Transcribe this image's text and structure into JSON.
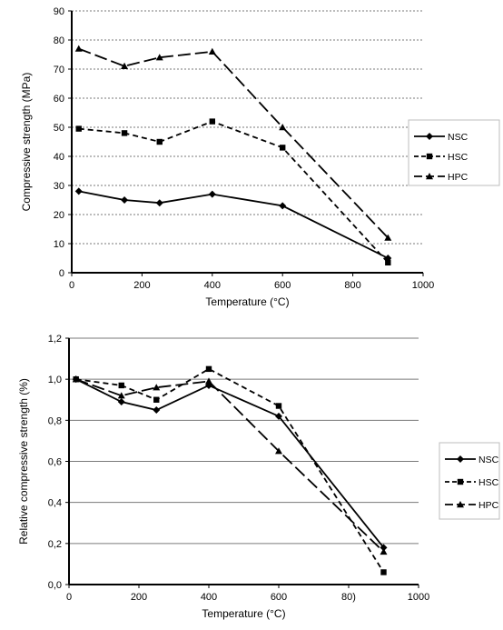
{
  "chart_data": [
    {
      "type": "line",
      "title": "",
      "xlabel": "Temperature (°C)",
      "ylabel": "Compressive strength  (MPa)",
      "xlim": [
        0,
        1000
      ],
      "ylim": [
        0,
        90
      ],
      "x_ticks": [
        "0",
        "200",
        "400",
        "600",
        "800",
        "1000"
      ],
      "y_ticks": [
        "0",
        "10",
        "20",
        "30",
        "40",
        "50",
        "60",
        "70",
        "80",
        "90"
      ],
      "grid": true,
      "legend_position": "right",
      "series": [
        {
          "name": "NSC",
          "marker": "diamond",
          "dash": "solid",
          "x": [
            20,
            150,
            250,
            400,
            600,
            900
          ],
          "y": [
            28,
            25,
            24,
            27,
            23,
            5
          ]
        },
        {
          "name": "HSC",
          "marker": "square",
          "dash": "dashed",
          "x": [
            20,
            150,
            250,
            400,
            600,
            900
          ],
          "y": [
            49.5,
            48,
            45,
            52,
            43,
            3.5
          ]
        },
        {
          "name": "HPC",
          "marker": "triangle",
          "dash": "longdash",
          "x": [
            20,
            150,
            250,
            400,
            600,
            900
          ],
          "y": [
            77,
            71,
            74,
            76,
            50,
            12
          ]
        }
      ]
    },
    {
      "type": "line",
      "title": "",
      "xlabel": "Temperature (°C)",
      "ylabel": "Relative compressive strength  (%)",
      "xlim": [
        0,
        1000
      ],
      "ylim": [
        0,
        1.2
      ],
      "x_ticks": [
        "0",
        "200",
        "400",
        "600",
        "80)",
        "1000"
      ],
      "y_ticks": [
        "0,0",
        "0,2",
        "0,4",
        "0,6",
        "0,8",
        "1,0",
        "1,2"
      ],
      "grid": true,
      "legend_position": "right",
      "series": [
        {
          "name": "NSC",
          "marker": "diamond",
          "dash": "solid",
          "x": [
            20,
            150,
            250,
            400,
            600,
            900
          ],
          "y": [
            1.0,
            0.89,
            0.85,
            0.97,
            0.82,
            0.18
          ]
        },
        {
          "name": "HSC",
          "marker": "square",
          "dash": "dashed",
          "x": [
            20,
            150,
            250,
            400,
            600,
            900
          ],
          "y": [
            1.0,
            0.97,
            0.9,
            1.05,
            0.87,
            0.06
          ]
        },
        {
          "name": "HPC",
          "marker": "triangle",
          "dash": "longdash",
          "x": [
            20,
            150,
            250,
            400,
            600,
            900
          ],
          "y": [
            1.0,
            0.92,
            0.96,
            0.99,
            0.65,
            0.16
          ]
        }
      ]
    }
  ]
}
